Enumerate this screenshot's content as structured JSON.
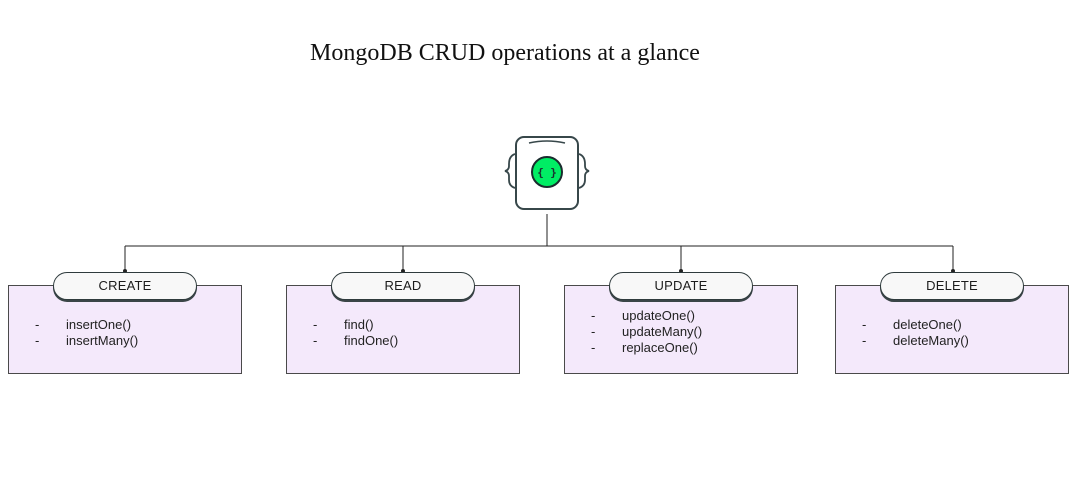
{
  "title": "MongoDB CRUD operations at a glance",
  "icon": {
    "name": "document-braces-icon",
    "symbol": "{ }",
    "accent": "#00ed64"
  },
  "operations": [
    {
      "label": "CREATE",
      "methods": [
        "insertOne()",
        "insertMany()"
      ]
    },
    {
      "label": "READ",
      "methods": [
        "find()",
        "findOne()"
      ]
    },
    {
      "label": "UPDATE",
      "methods": [
        "updateOne()",
        "updateMany()",
        "replaceOne()"
      ]
    },
    {
      "label": "DELETE",
      "methods": [
        "deleteOne()",
        "deleteMany()"
      ]
    }
  ],
  "colors": {
    "box_fill": "#f4e9fb",
    "line": "#222222"
  }
}
